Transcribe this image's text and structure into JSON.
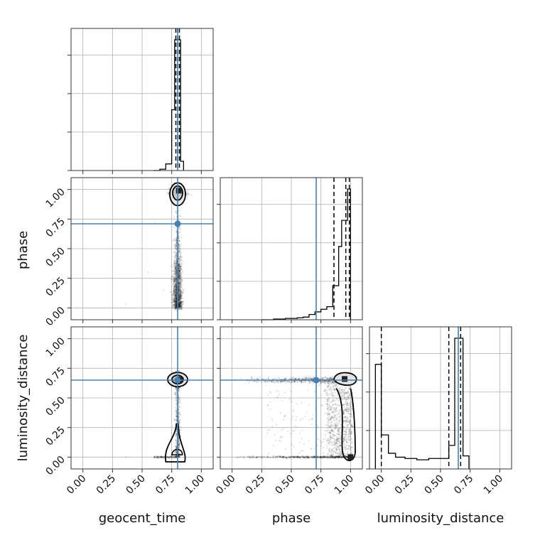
{
  "chart_data": {
    "type": "corner",
    "parameters": [
      "geocent_time",
      "phase",
      "luminosity_distance"
    ],
    "tick_labels": [
      "0.00",
      "0.25",
      "0.50",
      "0.75",
      "1.00"
    ],
    "truth_color": "#4682b4",
    "axis_range": [
      -0.1,
      1.1
    ],
    "grid": true,
    "truths": {
      "geocent_time": 0.8,
      "phase": 0.71,
      "luminosity_distance": 0.65
    },
    "marginals": [
      {
        "param": "geocent_time",
        "quantiles": [
          0.785,
          0.8,
          0.815
        ],
        "bin_edges": [
          0.6,
          0.65,
          0.7,
          0.725,
          0.75,
          0.775,
          0.8,
          0.825,
          0.85
        ],
        "density": [
          0.0,
          0.01,
          0.05,
          0.05,
          0.46,
          0.99,
          0.99,
          0.07
        ]
      },
      {
        "param": "phase",
        "quantiles": [
          0.86,
          0.96,
          0.99
        ],
        "bin_edges": [
          0.25,
          0.35,
          0.45,
          0.55,
          0.6,
          0.65,
          0.7,
          0.75,
          0.8,
          0.85,
          0.875,
          0.9,
          0.925,
          0.95,
          0.975,
          1.0
        ],
        "density": [
          0.0,
          0.005,
          0.01,
          0.015,
          0.02,
          0.04,
          0.06,
          0.08,
          0.1,
          0.26,
          0.26,
          0.56,
          0.76,
          0.76,
          1.0
        ]
      },
      {
        "param": "luminosity_distance",
        "quantiles": [
          0.0,
          0.57,
          0.67
        ],
        "bin_edges": [
          -0.05,
          0.0,
          0.06,
          0.12,
          0.2,
          0.3,
          0.4,
          0.5,
          0.57,
          0.62,
          0.69,
          0.74
        ],
        "density": [
          0.4,
          0.13,
          0.06,
          0.045,
          0.04,
          0.035,
          0.04,
          0.04,
          0.09,
          0.5,
          0.05
        ]
      }
    ],
    "joint_panels": [
      {
        "x": "geocent_time",
        "y": "phase",
        "samples": "points concentrated near geocent_time 0.78-0.82, phase 0.3-1.0, densest at phase ~0.95"
      },
      {
        "x": "geocent_time",
        "y": "luminosity_distance",
        "samples": "points concentrated near geocent_time 0.78-0.82, two modes at luminosity_distance ~0.65 and ~0.0"
      },
      {
        "x": "phase",
        "y": "luminosity_distance",
        "samples": "band at luminosity_distance ~0.65 and ~0.0 spanning phase 0-1, dense region phase 0.85-1.0"
      }
    ]
  }
}
